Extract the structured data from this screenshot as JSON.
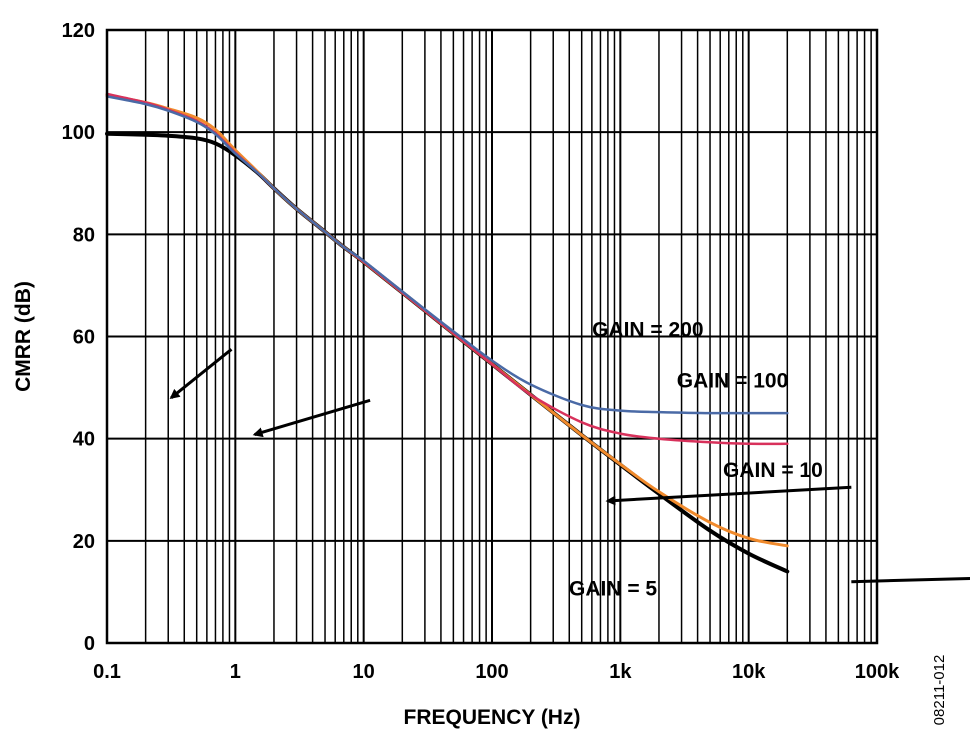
{
  "chart_data": {
    "type": "line",
    "xscale": "log",
    "xlim": [
      0.1,
      100000
    ],
    "ylim": [
      0,
      120
    ],
    "xlabel": "FREQUENCY (Hz)",
    "ylabel": "CMRR (dB)",
    "x_tick_values": [
      0.1,
      1,
      10,
      100,
      1000,
      10000,
      100000
    ],
    "x_tick_labels": [
      "0.1",
      "1",
      "10",
      "100",
      "1k",
      "10k",
      "100k"
    ],
    "y_tick_values": [
      0,
      20,
      40,
      60,
      80,
      100,
      120
    ],
    "y_tick_labels": [
      "0",
      "20",
      "40",
      "60",
      "80",
      "100",
      "120"
    ],
    "grid": true,
    "figure_id": "08211-012",
    "series": [
      {
        "name": "GAIN = 5",
        "color": "#000000",
        "stroke_width": 4,
        "x": [
          0.1,
          0.2,
          0.3,
          0.5,
          0.7,
          1,
          1.5,
          2,
          3,
          5,
          7,
          10,
          20,
          50,
          100,
          200,
          500,
          1000,
          2000,
          5000,
          10000,
          20000
        ],
        "y": [
          99.7,
          99.5,
          99.3,
          98.8,
          97.8,
          95.5,
          92.0,
          89.0,
          85.0,
          80.5,
          77.5,
          74.6,
          68.6,
          60.6,
          54.6,
          48.6,
          40.7,
          34.9,
          29.2,
          22.0,
          17.5,
          14.0
        ]
      },
      {
        "name": "GAIN = 10",
        "color": "#f08a2c",
        "stroke_width": 3,
        "x": [
          0.1,
          0.2,
          0.3,
          0.5,
          0.7,
          1,
          1.5,
          2,
          3,
          5,
          7,
          10,
          20,
          50,
          100,
          200,
          500,
          1000,
          2000,
          5000,
          10000,
          20000
        ],
        "y": [
          107.3,
          105.8,
          104.6,
          102.8,
          100.5,
          96.5,
          92.2,
          89.0,
          85.0,
          80.5,
          77.5,
          74.6,
          68.6,
          60.6,
          54.6,
          48.6,
          40.7,
          35.0,
          29.6,
          23.6,
          20.5,
          19.0
        ]
      },
      {
        "name": "GAIN = 100",
        "color": "#d8315b",
        "stroke_width": 2.5,
        "x": [
          0.1,
          0.2,
          0.3,
          0.5,
          0.7,
          1,
          1.5,
          2,
          3,
          5,
          7,
          10,
          20,
          50,
          100,
          200,
          500,
          1000,
          2000,
          5000,
          10000,
          20000
        ],
        "y": [
          107.5,
          105.8,
          104.4,
          102.2,
          99.8,
          96.0,
          92.0,
          89.0,
          85.0,
          80.5,
          77.5,
          74.6,
          68.6,
          60.6,
          54.6,
          48.6,
          43.2,
          41.0,
          40.0,
          39.3,
          39.0,
          39.0
        ]
      },
      {
        "name": "GAIN = 200",
        "color": "#4a6aa6",
        "stroke_width": 2.5,
        "x": [
          0.1,
          0.2,
          0.3,
          0.5,
          0.7,
          1,
          1.5,
          2,
          3,
          5,
          7,
          10,
          20,
          50,
          100,
          200,
          500,
          1000,
          2000,
          5000,
          10000,
          20000
        ],
        "y": [
          107.0,
          105.5,
          104.2,
          102.0,
          99.6,
          95.8,
          92.0,
          89.0,
          85.0,
          80.5,
          77.5,
          74.8,
          68.8,
          61.0,
          55.3,
          50.6,
          46.6,
          45.5,
          45.2,
          45.0,
          45.0,
          45.0
        ]
      }
    ],
    "annotations": [
      {
        "text": "GAIN = 200",
        "label_at": [
          0.63,
          60.0
        ],
        "arrow_to": [
          0.5,
          48.0
        ],
        "arrow_from": [
          0.97,
          57.5
        ]
      },
      {
        "text": "GAIN = 100",
        "label_at": [
          0.74,
          50.0
        ],
        "arrow_to": [
          1.15,
          40.8
        ],
        "arrow_from": [
          2.05,
          47.5
        ]
      },
      {
        "text": "GAIN = 10",
        "label_at": [
          0.8,
          32.5
        ],
        "arrow_to": [
          3.9,
          27.8
        ],
        "arrow_from": [
          5.8,
          30.5
        ]
      },
      {
        "text": "GAIN = 5",
        "label_at": [
          0.6,
          9.3
        ],
        "arrow_to": [
          10.5,
          15.2
        ],
        "arrow_from": [
          5.8,
          12.0
        ]
      }
    ]
  }
}
